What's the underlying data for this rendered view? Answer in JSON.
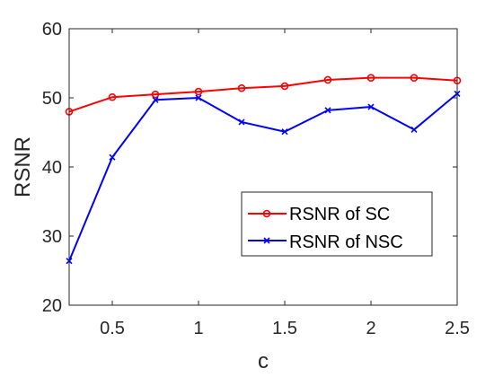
{
  "chart_data": {
    "type": "line",
    "xlabel": "c",
    "ylabel": "RSNR",
    "xlim": [
      0.25,
      2.5
    ],
    "ylim": [
      20,
      60
    ],
    "xticks": [
      0.5,
      1,
      1.5,
      2,
      2.5
    ],
    "xtick_labels": [
      "0.5",
      "1",
      "1.5",
      "2",
      "2.5"
    ],
    "yticks": [
      20,
      30,
      40,
      50,
      60
    ],
    "ytick_labels": [
      "20",
      "30",
      "40",
      "50",
      "60"
    ],
    "x": [
      0.25,
      0.5,
      0.75,
      1.0,
      1.25,
      1.5,
      1.75,
      2.0,
      2.25,
      2.5
    ],
    "series": [
      {
        "name": "RSNR of SC",
        "color": "#ff0000",
        "marker": "circle",
        "values": [
          48.0,
          50.1,
          50.5,
          50.9,
          51.4,
          51.7,
          52.6,
          52.9,
          52.9,
          52.5
        ]
      },
      {
        "name": "RSNR of NSC",
        "color": "#0000ff",
        "marker": "x",
        "values": [
          26.4,
          41.4,
          49.7,
          50.0,
          46.5,
          45.1,
          48.2,
          48.7,
          45.4,
          50.6
        ]
      }
    ],
    "grid": false,
    "legend_position": "lower-right"
  }
}
